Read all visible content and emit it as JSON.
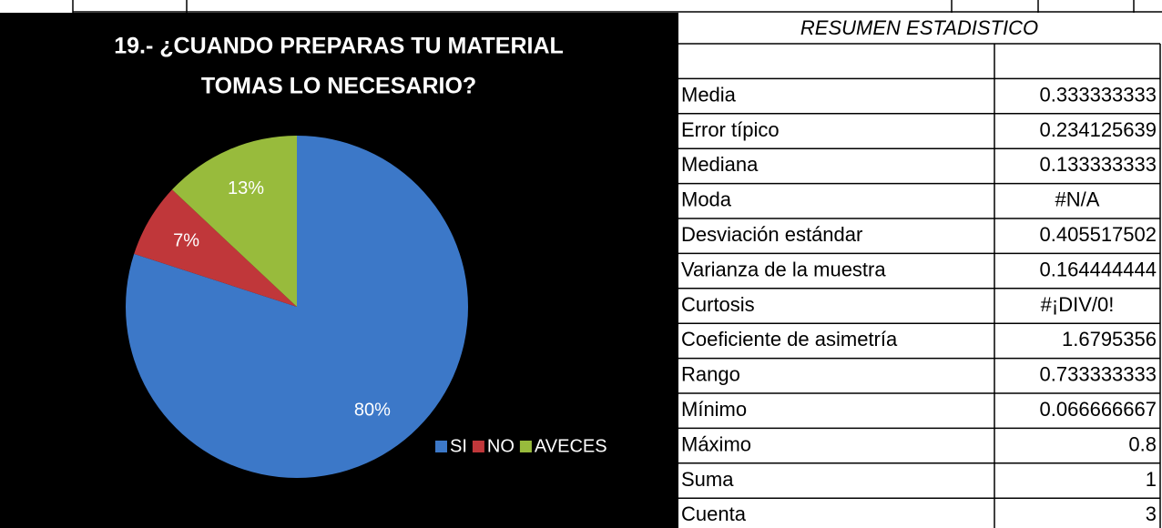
{
  "chart_data": {
    "type": "pie",
    "title": [
      "19.- ¿CUANDO PREPARAS TU MATERIAL",
      "TOMAS LO NECESARIO?"
    ],
    "categories": [
      "SI",
      "NO",
      "AVECES"
    ],
    "values": [
      80,
      7,
      13
    ],
    "value_labels": [
      "80%",
      "7%",
      "13%"
    ],
    "colors": [
      "#3c78c8",
      "#c0373a",
      "#98bb3c"
    ],
    "legend": "right"
  },
  "table": {
    "title": "RESUMEN ESTADISTICO",
    "rows": [
      [
        "Media",
        "0.333333333"
      ],
      [
        "Error típico",
        "0.234125639"
      ],
      [
        "Mediana",
        "0.133333333"
      ],
      [
        "Moda",
        "#N/A"
      ],
      [
        "Desviación estándar",
        "0.405517502"
      ],
      [
        "Varianza de la muestra",
        "0.164444444"
      ],
      [
        "Curtosis",
        "#¡DIV/0!"
      ],
      [
        "Coeficiente de asimetría",
        "1.6795356"
      ],
      [
        "Rango",
        "0.733333333"
      ],
      [
        "Mínimo",
        "0.066666667"
      ],
      [
        "Máximo",
        "0.8"
      ],
      [
        "Suma",
        "1"
      ],
      [
        "Cuenta",
        "3"
      ]
    ]
  }
}
